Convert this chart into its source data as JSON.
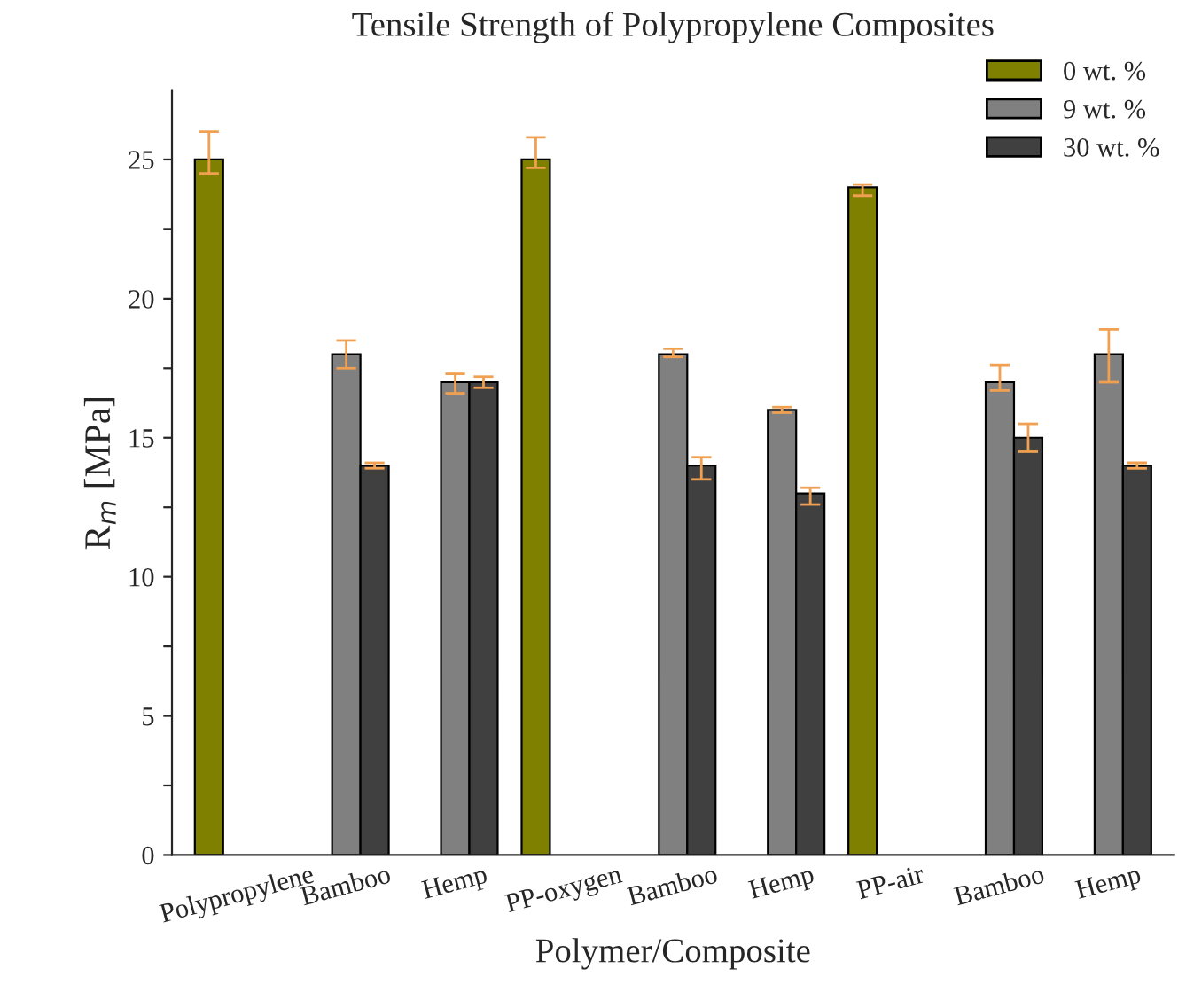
{
  "chart_data": {
    "type": "bar",
    "title": "Tensile Strength of Polypropylene Composites",
    "xlabel": "Polymer/Composite",
    "ylabel": "R$_{m}$ [MPa]",
    "categories": [
      "Polypropylene",
      "Bamboo",
      "Hemp",
      "PP-oxygen",
      "Bamboo",
      "Hemp",
      "PP-air",
      "Bamboo",
      "Hemp"
    ],
    "series": [
      {
        "name": "0 wt. %",
        "color": "#808000",
        "values": [
          25,
          null,
          null,
          25,
          null,
          null,
          24,
          null,
          null
        ],
        "errors": [
          [
            24.5,
            26
          ],
          null,
          null,
          [
            24.7,
            25.8
          ],
          null,
          null,
          [
            23.7,
            24.1
          ],
          null,
          null
        ]
      },
      {
        "name": "9 wt. %",
        "color": "#808080",
        "values": [
          null,
          18,
          17,
          null,
          18,
          16,
          null,
          17,
          18
        ],
        "errors": [
          null,
          [
            17.5,
            18.5
          ],
          [
            16.6,
            17.3
          ],
          null,
          [
            17.9,
            18.2
          ],
          [
            15.9,
            16.1
          ],
          null,
          [
            16.7,
            17.6
          ],
          [
            17,
            18.9
          ]
        ]
      },
      {
        "name": "30 wt. %",
        "color": "#404040",
        "values": [
          null,
          14,
          17,
          null,
          14,
          13,
          null,
          15,
          14
        ],
        "errors": [
          null,
          [
            13.9,
            14.1
          ],
          [
            16.8,
            17.2
          ],
          null,
          [
            13.5,
            14.3
          ],
          [
            12.6,
            13.2
          ],
          null,
          [
            14.5,
            15.5
          ],
          [
            13.9,
            14.1
          ]
        ]
      }
    ],
    "ylim": [
      0,
      27.5
    ],
    "yticks": [
      0,
      {
        "value": 2.5,
        "label": null
      },
      5,
      {
        "value": 7.5,
        "label": null
      },
      10,
      {
        "value": 12.5,
        "label": null
      },
      15,
      {
        "value": 17.5,
        "label": null
      },
      20,
      {
        "value": 22.5,
        "label": null
      },
      25
    ],
    "legend": "top right",
    "grid": false
  }
}
